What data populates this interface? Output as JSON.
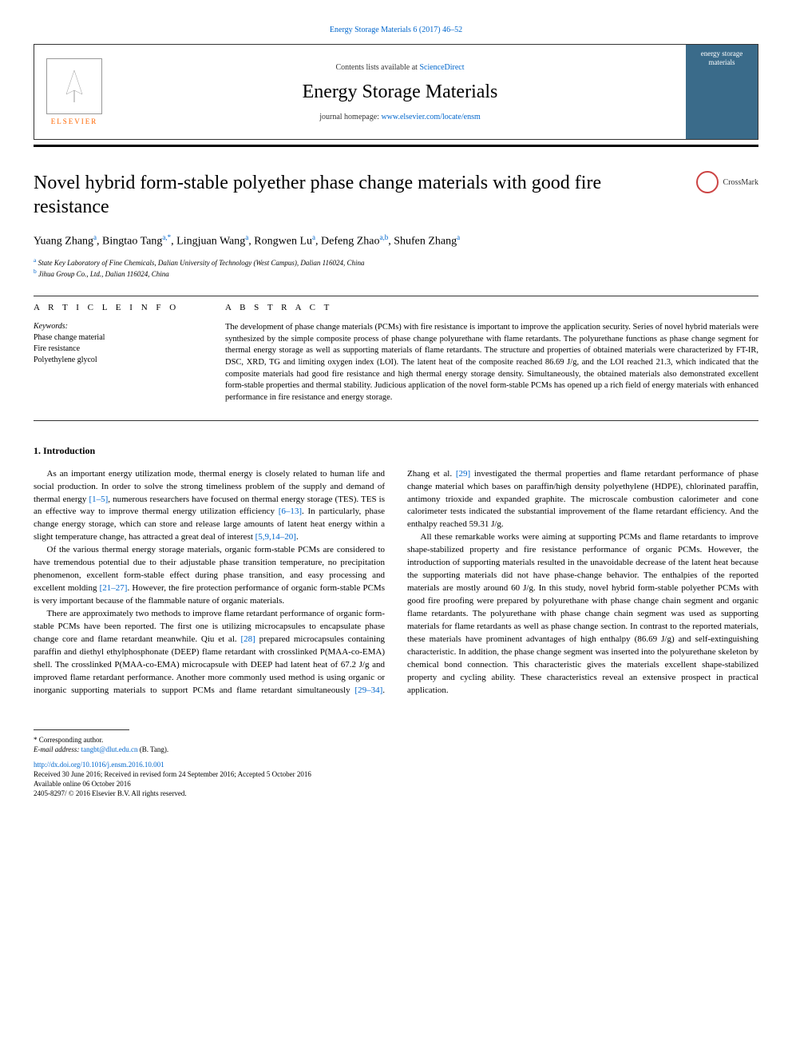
{
  "header": {
    "top_link": "Energy Storage Materials 6 (2017) 46–52",
    "contents_prefix": "Contents lists available at",
    "contents_link": "ScienceDirect",
    "journal_name": "Energy Storage Materials",
    "homepage_prefix": "journal homepage:",
    "homepage_url": "www.elsevier.com/locate/ensm",
    "elsevier_label": "ELSEVIER",
    "cover_text": "energy storage materials"
  },
  "article": {
    "title": "Novel hybrid form-stable polyether phase change materials with good fire resistance",
    "crossmark": "CrossMark",
    "authors_html": "Yuang Zhang<sup>a</sup>, Bingtao Tang<sup>a,*</sup>, Lingjuan Wang<sup>a</sup>, Rongwen Lu<sup>a</sup>, Defeng Zhao<sup>a,b</sup>, Shufen Zhang<sup>a</sup>",
    "affiliations": [
      {
        "sup": "a",
        "text": "State Key Laboratory of Fine Chemicals, Dalian University of Technology (West Campus), Dalian 116024, China"
      },
      {
        "sup": "b",
        "text": "Jihua Group Co., Ltd., Dalian 116024, China"
      }
    ]
  },
  "info": {
    "heading": "A R T I C L E  I N F O",
    "keywords_label": "Keywords:",
    "keywords": [
      "Phase change material",
      "Fire resistance",
      "Polyethylene glycol"
    ]
  },
  "abstract": {
    "heading": "A B S T R A C T",
    "text": "The development of phase change materials (PCMs) with fire resistance is important to improve the application security. Series of novel hybrid materials were synthesized by the simple composite process of phase change polyurethane with flame retardants. The polyurethane functions as phase change segment for thermal energy storage as well as supporting materials of flame retardants. The structure and properties of obtained materials were characterized by FT-IR, DSC, XRD, TG and limiting oxygen index (LOI). The latent heat of the composite reached 86.69 J/g, and the LOI reached 21.3, which indicated that the composite materials had good fire resistance and high thermal energy storage density. Simultaneously, the obtained materials also demonstrated excellent form-stable properties and thermal stability. Judicious application of the novel form-stable PCMs has opened up a rich field of energy materials with enhanced performance in fire resistance and energy storage."
  },
  "intro": {
    "heading": "1. Introduction",
    "paragraphs": [
      "As an important energy utilization mode, thermal energy is closely related to human life and social production. In order to solve the strong timeliness problem of the supply and demand of thermal energy <span class=\"ref-link\">[1–5]</span>, numerous researchers have focused on thermal energy storage (TES). TES is an effective way to improve thermal energy utilization efficiency <span class=\"ref-link\">[6–13]</span>. In particularly, phase change energy storage, which can store and release large amounts of latent heat energy within a slight temperature change, has attracted a great deal of interest <span class=\"ref-link\">[5,9,14–20]</span>.",
      "Of the various thermal energy storage materials, organic form-stable PCMs are considered to have tremendous potential due to their adjustable phase transition temperature, no precipitation phenomenon, excellent form-stable effect during phase transition, and easy processing and excellent molding <span class=\"ref-link\">[21–27]</span>. However, the fire protection performance of organic form-stable PCMs is very important because of the flammable nature of organic materials.",
      "There are approximately two methods to improve flame retardant performance of organic form-stable PCMs have been reported. The first one is utilizing microcapsules to encapsulate phase change core and flame retardant meanwhile. Qiu et al. <span class=\"ref-link\">[28]</span> prepared microcapsules containing paraffin and diethyl ethylphosphonate (DEEP) flame retardant with crosslinked P(MAA-co-EMA) shell. The crosslinked P(MAA-co-EMA) microcapsule with DEEP had latent heat of 67.2 J/g and improved flame retardant performance. Another more commonly used method is using organic or inorganic supporting materials to support PCMs and flame retardant simultaneously <span class=\"ref-link\">[29–34]</span>. Zhang et al. <span class=\"ref-link\">[29]</span> investigated the thermal properties and flame retardant performance of phase change material which bases on paraffin/high density polyethylene (HDPE), chlorinated paraffin, antimony trioxide and expanded graphite. The microscale combustion calorimeter and cone calorimeter tests indicated the substantial improvement of the flame retardant efficiency. And the enthalpy reached 59.31 J/g.",
      "All these remarkable works were aiming at supporting PCMs and flame retardants to improve shape-stabilized property and fire resistance performance of organic PCMs. However, the introduction of supporting materials resulted in the unavoidable decrease of the latent heat because the supporting materials did not have phase-change behavior. The enthalpies of the reported materials are mostly around 60 J/g. In this study, novel hybrid form-stable polyether PCMs with good fire proofing were prepared by polyurethane with phase change chain segment and organic flame retardants. The polyurethane with phase change chain segment was used as supporting materials for flame retardants as well as phase change section. In contrast to the reported materials, these materials have prominent advantages of high enthalpy (86.69 J/g) and self-extinguishing characteristic. In addition, the phase change segment was inserted into the polyurethane skeleton by chemical bond connection. This characteristic gives the materials excellent shape-stabilized property and cycling ability. These characteristics reveal an extensive prospect in practical application."
    ]
  },
  "footer": {
    "corresponding": "* Corresponding author.",
    "email_label": "E-mail address:",
    "email": "tangbt@dlut.edu.cn",
    "email_name": "(B. Tang).",
    "doi": "http://dx.doi.org/10.1016/j.ensm.2016.10.001",
    "received": "Received 30 June 2016; Received in revised form 24 September 2016; Accepted 5 October 2016",
    "available": "Available online 06 October 2016",
    "copyright": "2405-8297/ © 2016 Elsevier B.V. All rights reserved."
  },
  "colors": {
    "link": "#0066cc",
    "elsevier_orange": "#ff6600",
    "cover_bg": "#3a6b8a",
    "text": "#000000",
    "crossmark_ring": "#c44"
  },
  "typography": {
    "title_fontsize": 24,
    "body_fontsize": 11,
    "abstract_fontsize": 10.5,
    "footer_fontsize": 9
  }
}
